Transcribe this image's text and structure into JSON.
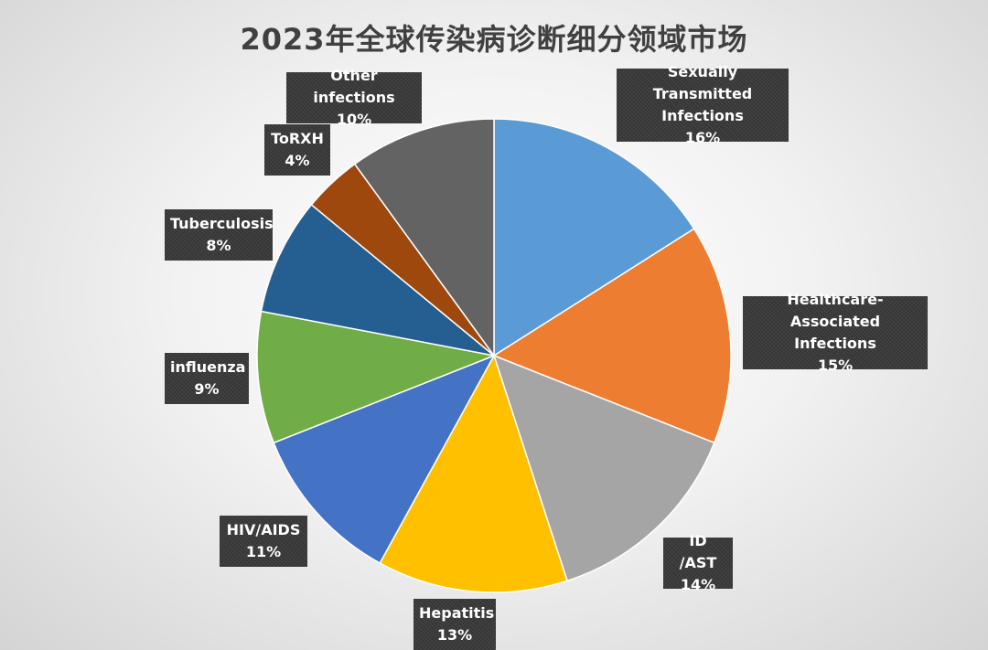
{
  "chart_data": {
    "type": "pie",
    "title": "2023年全球传染病诊断细分领域市场",
    "slices": [
      {
        "name": "Sexually Transmitted Infections",
        "lines": [
          "Sexually Transmitted",
          "Infections"
        ],
        "value": 16,
        "pct_label": "16%",
        "color": "#5b9bd5"
      },
      {
        "name": "Healthcare-Associated Infections",
        "lines": [
          "Healthcare-Associated",
          "Infections"
        ],
        "value": 15,
        "pct_label": "15%",
        "color": "#ed7d31"
      },
      {
        "name": "ID /AST",
        "lines": [
          "ID /AST"
        ],
        "value": 14,
        "pct_label": "14%",
        "color": "#a5a5a5"
      },
      {
        "name": "Hepatitis",
        "lines": [
          "Hepatitis"
        ],
        "value": 13,
        "pct_label": "13%",
        "color": "#ffc000"
      },
      {
        "name": "HIV/AIDS",
        "lines": [
          "HIV/AIDS"
        ],
        "value": 11,
        "pct_label": "11%",
        "color": "#4472c4"
      },
      {
        "name": "influenza",
        "lines": [
          "influenza"
        ],
        "value": 9,
        "pct_label": "9%",
        "color": "#70ad47"
      },
      {
        "name": "Tuberculosis",
        "lines": [
          "Tuberculosis"
        ],
        "value": 8,
        "pct_label": "8%",
        "color": "#255e91"
      },
      {
        "name": "ToRXH",
        "lines": [
          "ToRXH"
        ],
        "value": 4,
        "pct_label": "4%",
        "color": "#9e480e"
      },
      {
        "name": "Other infections",
        "lines": [
          "Other infections"
        ],
        "value": 10,
        "pct_label": "10%",
        "color": "#636363"
      }
    ]
  }
}
